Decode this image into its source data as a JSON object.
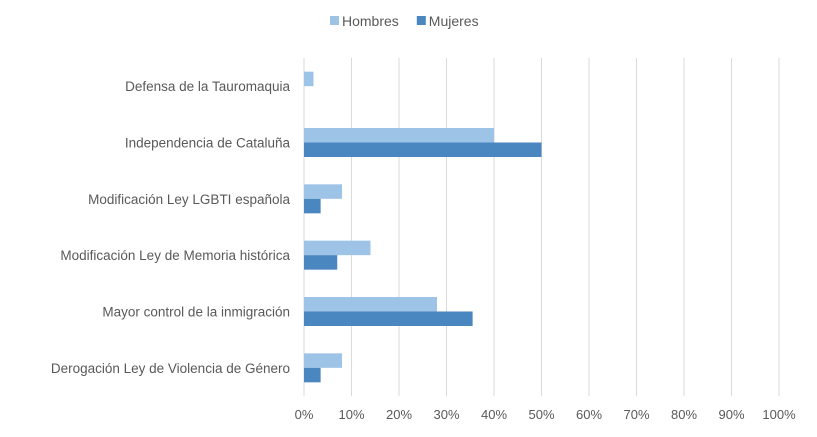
{
  "chart_data": {
    "type": "bar",
    "orientation": "horizontal",
    "categories": [
      "Defensa de la Tauromaquia",
      "Independencia de Cataluña",
      "Modificación Ley LGBTI española",
      "Modificación Ley de Memoria histórica",
      "Mayor control de la inmigración",
      "Derogación Ley de Violencia de Género"
    ],
    "series": [
      {
        "name": "Hombres",
        "color": "#9dc3e6",
        "values": [
          2,
          40,
          8,
          14,
          28,
          8
        ]
      },
      {
        "name": "Mujeres",
        "color": "#4a86c0",
        "values": [
          0,
          50,
          3.5,
          7,
          35.5,
          3.5
        ]
      }
    ],
    "xlim": [
      0,
      100
    ],
    "xticks": [
      0,
      10,
      20,
      30,
      40,
      50,
      60,
      70,
      80,
      90,
      100
    ],
    "tick_suffix": "%",
    "grid": true,
    "legend_position": "top-center"
  }
}
